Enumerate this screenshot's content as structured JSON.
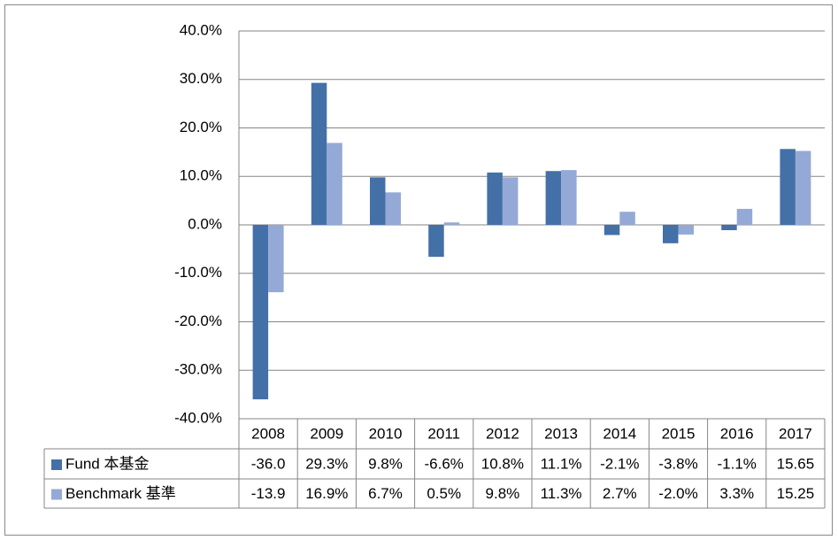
{
  "chart_data": {
    "type": "bar",
    "categories": [
      "2008",
      "2009",
      "2010",
      "2011",
      "2012",
      "2013",
      "2014",
      "2015",
      "2016",
      "2017"
    ],
    "series": [
      {
        "name": "Fund 本基金",
        "color": "#4470a8",
        "values": [
          -36.0,
          29.3,
          9.8,
          -6.6,
          10.8,
          11.1,
          -2.1,
          -3.8,
          -1.1,
          15.65
        ],
        "value_labels": [
          "-36.0",
          "29.3%",
          "9.8%",
          "-6.6%",
          "10.8%",
          "11.1%",
          "-2.1%",
          "-3.8%",
          "-1.1%",
          "15.65"
        ]
      },
      {
        "name": "Benchmark 基準",
        "color": "#95a9d6",
        "values": [
          -13.9,
          16.9,
          6.7,
          0.5,
          9.8,
          11.3,
          2.7,
          -2.0,
          3.3,
          15.25
        ],
        "value_labels": [
          "-13.9",
          "16.9%",
          "6.7%",
          "0.5%",
          "9.8%",
          "11.3%",
          "2.7%",
          "-2.0%",
          "3.3%",
          "15.25"
        ]
      }
    ],
    "ylim": [
      -40,
      40
    ],
    "yticks": [
      {
        "value": -40,
        "label": "-40.0%"
      },
      {
        "value": -30,
        "label": "-30.0%"
      },
      {
        "value": -20,
        "label": "-20.0%"
      },
      {
        "value": -10,
        "label": "-10.0%"
      },
      {
        "value": 0,
        "label": "0.0%"
      },
      {
        "value": 10,
        "label": "10.0%"
      },
      {
        "value": 20,
        "label": "20.0%"
      },
      {
        "value": 30,
        "label": "30.0%"
      },
      {
        "value": 40,
        "label": "40.0%"
      }
    ],
    "grid": true,
    "legend": "data-table"
  }
}
